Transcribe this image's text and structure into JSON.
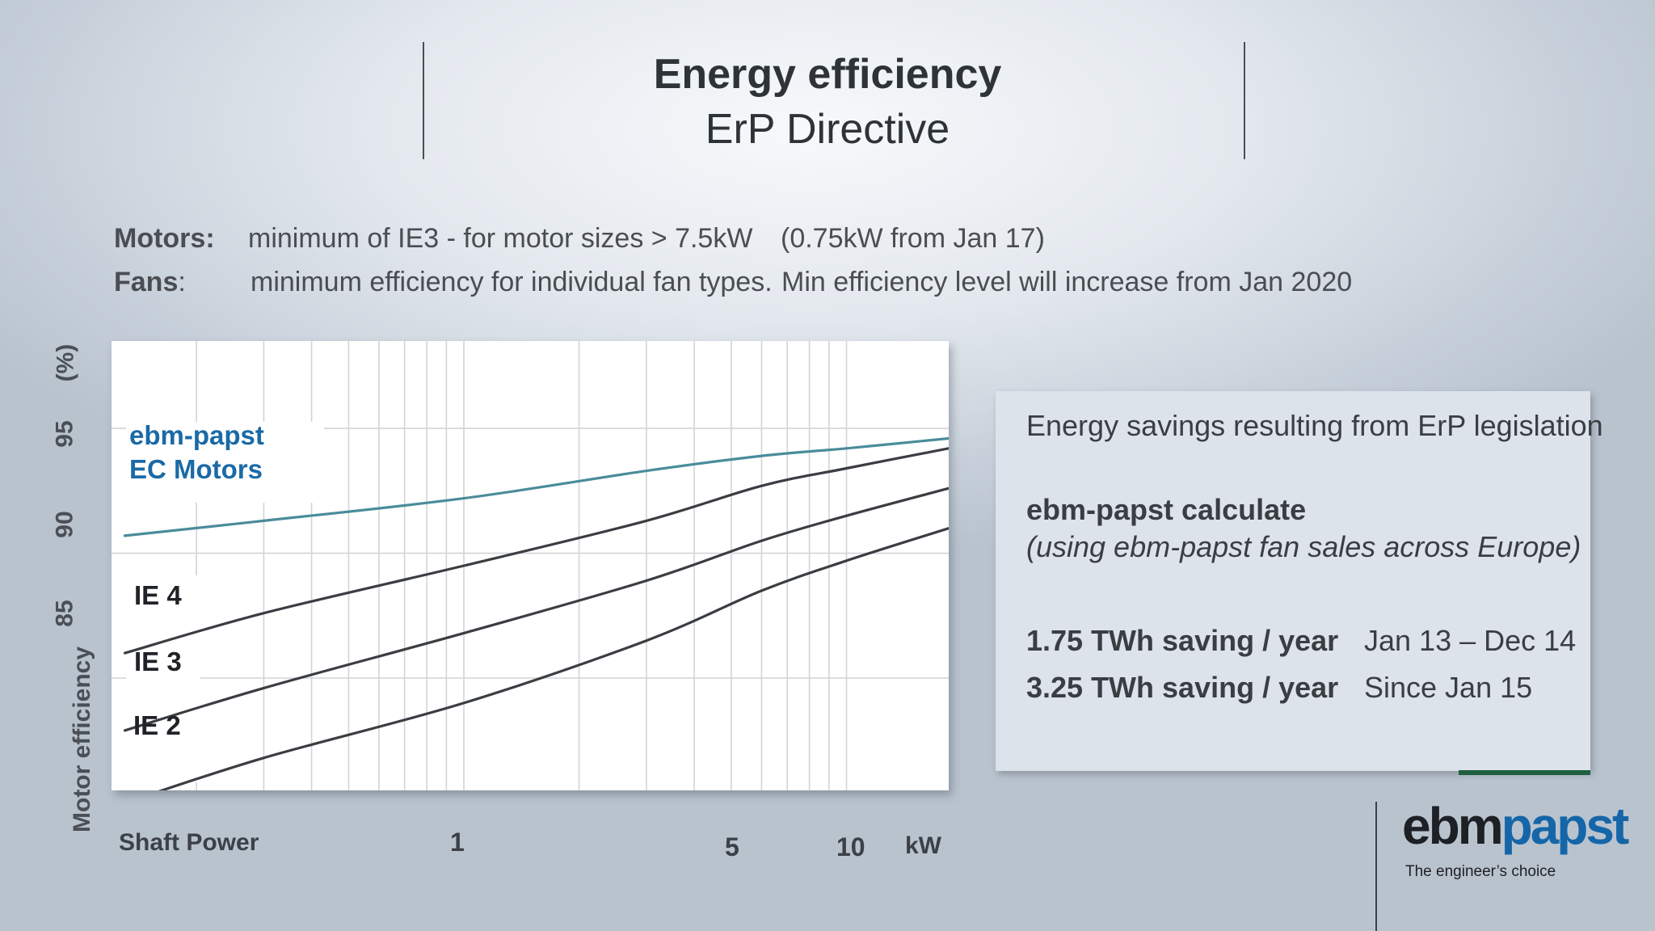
{
  "title": {
    "line1": "Energy efficiency",
    "line2": "ErP Directive"
  },
  "info": {
    "motors_label": "Motors:",
    "motors_text": "minimum of IE3  - for motor sizes > 7.5kW",
    "motors_note": "(0.75kW from Jan 17)",
    "fans_label": "Fans",
    "fans_colon": ":",
    "fans_text": "minimum efficiency for individual fan types.",
    "fans_note": "Min efficiency level will increase from Jan 2020"
  },
  "chart_data": {
    "type": "line",
    "xlabel": "Shaft Power",
    "x_unit": "kW",
    "ylabel": "Motor efficiency",
    "y_unit": "(%)",
    "x_scale": "log",
    "x_ticks": [
      "1",
      "5",
      "10"
    ],
    "y_ticks": [
      "85",
      "90",
      "95"
    ],
    "ylim": [
      80.5,
      98.5
    ],
    "xlim": [
      0.12,
      18.5
    ],
    "grid": true,
    "series": [
      {
        "name": "ebm-papst EC Motors",
        "color": "#4a8c9a",
        "x": [
          0.13,
          0.3,
          1,
          3,
          6,
          10,
          18.5
        ],
        "y": [
          90.7,
          91.3,
          92.2,
          93.3,
          93.9,
          94.2,
          94.6
        ]
      },
      {
        "name": "IE 4",
        "color": "#3a3d42",
        "x": [
          0.13,
          0.3,
          1,
          3,
          6,
          10,
          18.5
        ],
        "y": [
          86.0,
          87.6,
          89.5,
          91.3,
          92.7,
          93.4,
          94.2
        ]
      },
      {
        "name": "IE 3",
        "color": "#3a3d42",
        "x": [
          0.13,
          0.3,
          1,
          3,
          6,
          10,
          18.5
        ],
        "y": [
          82.9,
          84.6,
          86.8,
          88.9,
          90.5,
          91.5,
          92.6
        ]
      },
      {
        "name": "IE 2",
        "color": "#3a3d42",
        "x": [
          0.13,
          0.3,
          1,
          3,
          6,
          10,
          18.5
        ],
        "y": [
          80.0,
          81.8,
          84.0,
          86.5,
          88.5,
          89.7,
          91.0
        ]
      }
    ],
    "series_label_lines": {
      "ec_line1": "ebm-papst",
      "ec_line2": "EC Motors"
    }
  },
  "savings": {
    "heading": "Energy savings resulting from  ErP legislation",
    "calc_title": "ebm-papst calculate",
    "calc_note": "(using ebm-papst fan sales across Europe)",
    "rows": [
      {
        "amount": "1.75 TWh saving / year",
        "period": "Jan 13 – Dec 14"
      },
      {
        "amount": "3.25 TWh saving / year",
        "period": "Since Jan 15"
      }
    ]
  },
  "logo": {
    "part1": "ebm",
    "part2": "papst",
    "tagline": "The engineer’s choice"
  },
  "colors": {
    "ec_label": "#1a6aa6",
    "dark_text": "#3a3d42"
  }
}
